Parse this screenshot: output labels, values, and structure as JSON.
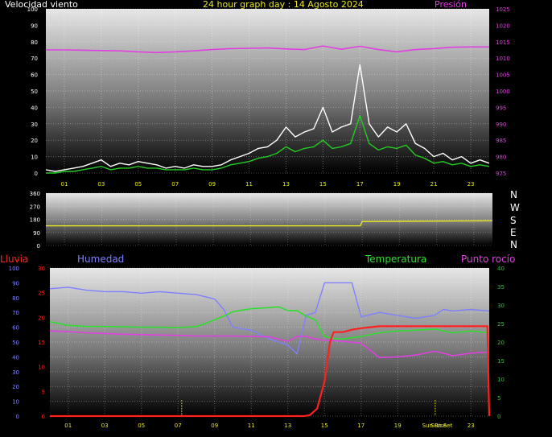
{
  "header": {
    "wind_label": "Velocidad viento",
    "title": "24 hour graph day : 14 Agosto 2024",
    "pressure_label": "Presión"
  },
  "direction_letters": [
    "N",
    "W",
    "S",
    "E",
    "N"
  ],
  "lower_labels": {
    "rain": "Lluvia",
    "humidity": "Humedad",
    "temperature": "Temperatura",
    "dewpoint": "Punto rocío"
  },
  "colors": {
    "wind_gust": "#ffffff",
    "wind_avg": "#22cc22",
    "pressure": "#e040e0",
    "direction": "#e8e820",
    "rain": "#ff2020",
    "humidity": "#8080ff",
    "temperature": "#30dd30",
    "dewpoint": "#e040e0",
    "axis_left": "#ffffff",
    "axis_right_lower": "#22cc22",
    "axis_rain": "#ff2020",
    "x_ticks": "#e8e820"
  },
  "chart_data": [
    {
      "type": "line",
      "name": "wind_pressure",
      "title": "24 hour graph day : 14 Agosto 2024",
      "x_ticks": [
        "01",
        "03",
        "05",
        "07",
        "09",
        "11",
        "13",
        "15",
        "17",
        "19",
        "21",
        "23"
      ],
      "x_tick_hours": [
        1,
        3,
        5,
        7,
        9,
        11,
        13,
        15,
        17,
        19,
        21,
        23
      ],
      "xlim": [
        0,
        24
      ],
      "ylim_left": [
        0,
        100
      ],
      "y_ticks_left": [
        "0",
        "10",
        "20",
        "30",
        "40",
        "50",
        "60",
        "70",
        "80",
        "90",
        "100"
      ],
      "ylim_right": [
        975,
        1025
      ],
      "y_ticks_right": [
        "975",
        "980",
        "985",
        "990",
        "995",
        "1000",
        "1005",
        "1010",
        "1015",
        "1020",
        "1025"
      ],
      "series": [
        {
          "name": "Velocidad viento",
          "x": [
            0,
            0.5,
            1,
            1.5,
            2,
            2.5,
            3,
            3.5,
            4,
            4.5,
            5,
            5.5,
            6,
            6.5,
            7,
            7.5,
            8,
            8.5,
            9,
            9.5,
            10,
            10.5,
            11,
            11.5,
            12,
            12.5,
            13,
            13.5,
            14,
            14.5,
            15,
            15.5,
            16,
            16.5,
            17,
            17.5,
            18,
            18.5,
            19,
            19.5,
            20,
            20.5,
            21,
            21.5,
            22,
            22.5,
            23,
            23.5,
            24
          ],
          "values": [
            2,
            1,
            2,
            3,
            4,
            6,
            8,
            4,
            6,
            5,
            7,
            6,
            5,
            3,
            4,
            3,
            5,
            4,
            4,
            5,
            8,
            10,
            12,
            15,
            16,
            20,
            28,
            22,
            25,
            27,
            40,
            25,
            28,
            30,
            66,
            30,
            22,
            28,
            25,
            30,
            18,
            15,
            10,
            12,
            8,
            10,
            6,
            8,
            6
          ]
        },
        {
          "name": "viento medio",
          "x": [
            0,
            0.5,
            1,
            1.5,
            2,
            2.5,
            3,
            3.5,
            4,
            4.5,
            5,
            5.5,
            6,
            6.5,
            7,
            7.5,
            8,
            8.5,
            9,
            9.5,
            10,
            10.5,
            11,
            11.5,
            12,
            12.5,
            13,
            13.5,
            14,
            14.5,
            15,
            15.5,
            16,
            16.5,
            17,
            17.5,
            18,
            18.5,
            19,
            19.5,
            20,
            20.5,
            21,
            21.5,
            22,
            22.5,
            23,
            23.5,
            24
          ],
          "values": [
            0,
            0,
            1,
            1,
            2,
            3,
            4,
            2,
            3,
            3,
            4,
            3,
            3,
            2,
            2,
            2,
            3,
            2,
            2,
            3,
            5,
            6,
            7,
            9,
            10,
            12,
            16,
            13,
            15,
            16,
            20,
            15,
            16,
            18,
            35,
            18,
            14,
            16,
            15,
            17,
            11,
            9,
            6,
            7,
            5,
            6,
            4,
            5,
            4
          ]
        },
        {
          "name": "Presión",
          "x": [
            0,
            1,
            2,
            3,
            4,
            5,
            6,
            7,
            8,
            9,
            10,
            11,
            12,
            13,
            14,
            15,
            16,
            17,
            18,
            19,
            20,
            21,
            22,
            23,
            24
          ],
          "values": [
            1012.5,
            1012.5,
            1012.4,
            1012.3,
            1012.2,
            1011.9,
            1011.7,
            1011.9,
            1012.2,
            1012.6,
            1012.9,
            1013.0,
            1013.1,
            1012.8,
            1012.6,
            1013.7,
            1012.7,
            1013.6,
            1012.6,
            1011.9,
            1012.6,
            1012.9,
            1013.3,
            1013.4,
            1013.4
          ]
        }
      ]
    },
    {
      "type": "line",
      "name": "wind_direction",
      "xlim": [
        0,
        24
      ],
      "ylim": [
        0,
        360
      ],
      "y_ticks": [
        "0",
        "90",
        "180",
        "270",
        "360"
      ],
      "series": [
        {
          "name": "direction",
          "x": [
            0,
            16.9,
            17,
            17.1,
            24
          ],
          "values": [
            135,
            135,
            165,
            165,
            170
          ]
        }
      ]
    },
    {
      "type": "line",
      "name": "rain_humidity_temp",
      "x_ticks": [
        "01",
        "03",
        "05",
        "07",
        "09",
        "11",
        "13",
        "15",
        "17",
        "19",
        "Sun Rise",
        "Sun Set",
        "23"
      ],
      "xlim": [
        0,
        24
      ],
      "ylim_humidity": [
        0,
        100
      ],
      "y_ticks_humidity": [
        "0",
        "10",
        "20",
        "30",
        "40",
        "50",
        "60",
        "70",
        "80",
        "90",
        "100"
      ],
      "ylim_rain": [
        0,
        30
      ],
      "y_ticks_rain": [
        "0",
        "5",
        "10",
        "15",
        "20",
        "25",
        "30"
      ],
      "ylim_temp": [
        0,
        40
      ],
      "y_ticks_temp": [
        "0",
        "5",
        "10",
        "15",
        "20",
        "25",
        "30",
        "35",
        "40"
      ],
      "sunrise_hour": 7.2,
      "sunset_hour": 21.05,
      "series": [
        {
          "name": "Humedad",
          "x": [
            0,
            1,
            2,
            3,
            4,
            5,
            6,
            7,
            8,
            9,
            9.5,
            10,
            11,
            12,
            12.5,
            13,
            13.5,
            14,
            14.5,
            15,
            16,
            16.5,
            17,
            18,
            19,
            20,
            21,
            21.5,
            22,
            23,
            24
          ],
          "values": [
            86,
            87,
            85,
            84,
            84,
            83,
            84,
            83,
            82,
            79,
            72,
            60,
            58,
            52,
            50,
            48,
            42,
            68,
            70,
            90,
            90,
            90,
            67,
            70,
            68,
            66,
            68,
            72,
            71,
            72,
            71
          ]
        },
        {
          "name": "Temperatura",
          "x": [
            0,
            1,
            2,
            3,
            4,
            5,
            6,
            7,
            8,
            8.5,
            9,
            9.5,
            10,
            11,
            12,
            12.5,
            13,
            13.5,
            14,
            14.5,
            15,
            15.5,
            16,
            17,
            18,
            19,
            20,
            21,
            22,
            23,
            24
          ],
          "values": [
            25.5,
            24.5,
            24.2,
            24.2,
            24.1,
            24.0,
            24.0,
            23.9,
            24.2,
            25.0,
            26.0,
            27.0,
            28.2,
            29.0,
            29.3,
            29.5,
            28.5,
            28.5,
            27.0,
            26.0,
            21.5,
            21.0,
            20.8,
            21.5,
            22.5,
            23.0,
            23.2,
            23.5,
            22.5,
            23.0,
            22.5
          ]
        },
        {
          "name": "Punto rocío",
          "x": [
            0,
            1,
            2,
            3,
            4,
            5,
            6,
            7,
            8,
            9,
            10,
            11,
            12,
            13,
            13.5,
            14,
            14.5,
            15,
            16,
            17,
            18,
            19,
            20,
            21,
            21.5,
            22,
            23,
            24
          ],
          "values": [
            23.0,
            22.8,
            22.5,
            22.3,
            22.1,
            22.0,
            21.9,
            21.8,
            21.6,
            21.6,
            21.6,
            21.5,
            21.4,
            20.2,
            21.5,
            21.5,
            20.8,
            20.5,
            20.2,
            19.7,
            15.8,
            16.0,
            16.5,
            17.5,
            17.0,
            16.3,
            17.0,
            17.3
          ]
        },
        {
          "name": "Lluvia",
          "x": [
            0,
            13.9,
            14.2,
            14.6,
            15.0,
            15.3,
            15.5,
            16,
            16.5,
            17,
            17.5,
            18,
            19,
            20,
            21,
            22,
            23,
            23.9,
            24
          ],
          "values": [
            0,
            0,
            0.2,
            1.5,
            7,
            15,
            17,
            17,
            17.5,
            17.8,
            18,
            18.2,
            18.2,
            18.2,
            18.2,
            18.2,
            18.2,
            18.2,
            0
          ]
        }
      ]
    }
  ]
}
